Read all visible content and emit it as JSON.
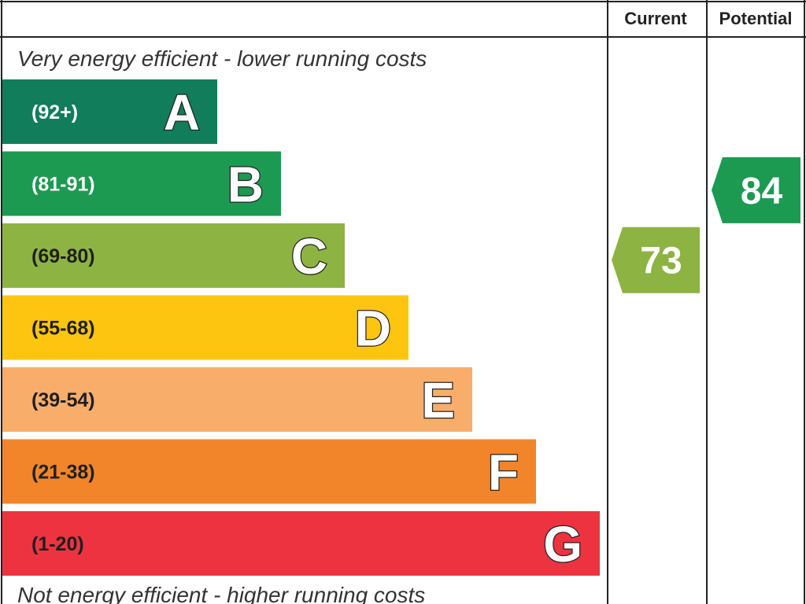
{
  "header": {
    "current_label": "Current",
    "potential_label": "Potential"
  },
  "captions": {
    "top": "Very energy efficient - lower running costs",
    "bottom": "Not energy efficient - higher running costs"
  },
  "chart_data": {
    "type": "bar",
    "categories": [
      "A",
      "B",
      "C",
      "D",
      "E",
      "F",
      "G"
    ],
    "ranges": [
      "(92+)",
      "(81-91)",
      "(69-80)",
      "(55-68)",
      "(39-54)",
      "(21-38)",
      "(1-20)"
    ],
    "range_bounds": [
      [
        92,
        100
      ],
      [
        81,
        91
      ],
      [
        69,
        80
      ],
      [
        55,
        68
      ],
      [
        39,
        54
      ],
      [
        21,
        38
      ],
      [
        1,
        20
      ]
    ],
    "band_colors": [
      "#117d5a",
      "#1c9a52",
      "#8db442",
      "#fdc50f",
      "#f8ad6b",
      "#f2852a",
      "#ee3340"
    ],
    "range_text_colors": [
      "#ffffff",
      "#ffffff",
      "#1f1f1f",
      "#1f1f1f",
      "#1f1f1f",
      "#1f1f1f",
      "#1f1f1f"
    ],
    "current": {
      "value": 73,
      "band": "C",
      "color": "#8db442"
    },
    "potential": {
      "value": 84,
      "band": "B",
      "color": "#1c9a52"
    }
  }
}
